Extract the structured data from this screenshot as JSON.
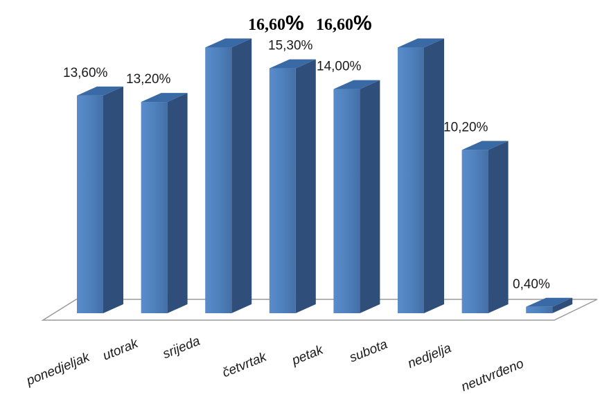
{
  "chart_data": {
    "type": "bar",
    "categories": [
      "ponedjeljak",
      "utorak",
      "srijeda",
      "četvrtak",
      "petak",
      "subota",
      "nedjelja",
      "neutvrđeno"
    ],
    "values": [
      13.6,
      13.2,
      16.6,
      15.3,
      14.0,
      16.6,
      10.2,
      0.4
    ],
    "data_labels": [
      "13,60%",
      "13,20%",
      "16,60%",
      "15,30%",
      "14,00%",
      "16,60%",
      "10,20%",
      "0,40%"
    ],
    "emphasized_labels": [
      {
        "number": "16,60",
        "symbol": "%"
      },
      {
        "number": "16,60",
        "symbol": "%"
      }
    ],
    "ylim": [
      0,
      17.5
    ],
    "grid": false,
    "legend": "none",
    "colors": {
      "bar_front": "#4f81bd",
      "bar_side": "#2f4f7a",
      "bar_top": "#3a6aa5",
      "floor_line": "#9a9a9a"
    }
  }
}
